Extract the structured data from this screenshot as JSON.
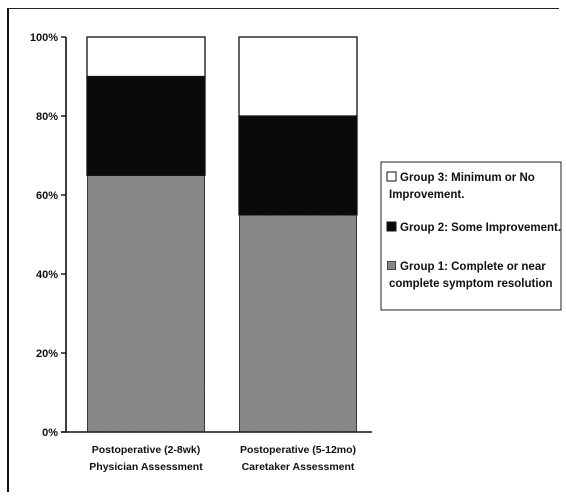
{
  "chart_data": {
    "type": "bar",
    "stacked": true,
    "y_format": "percent",
    "ylim": [
      0,
      100
    ],
    "yticks": [
      0,
      20,
      40,
      60,
      80,
      100
    ],
    "yticklabels": [
      "0%",
      "20%",
      "40%",
      "60%",
      "80%",
      "100%"
    ],
    "categories": [
      [
        "Postoperative (2-8wk)",
        "Physician Assessment"
      ],
      [
        "Postoperative (5-12mo)",
        "Caretaker Assessment"
      ]
    ],
    "series": [
      {
        "name": [
          "Group 1: Complete or near",
          "complete symptom resolution"
        ],
        "color": "#8a8a8a",
        "values": [
          65,
          55
        ]
      },
      {
        "name": [
          "Group 2: Some Improvement."
        ],
        "color": "#0a0a0a",
        "values": [
          25,
          25
        ]
      },
      {
        "name": [
          "Group 3: Minimum or No",
          "Improvement."
        ],
        "color": "#ffffff",
        "values": [
          10,
          20
        ]
      }
    ],
    "legend_order": [
      2,
      1,
      0
    ],
    "legend_position": "right",
    "grid": false
  }
}
